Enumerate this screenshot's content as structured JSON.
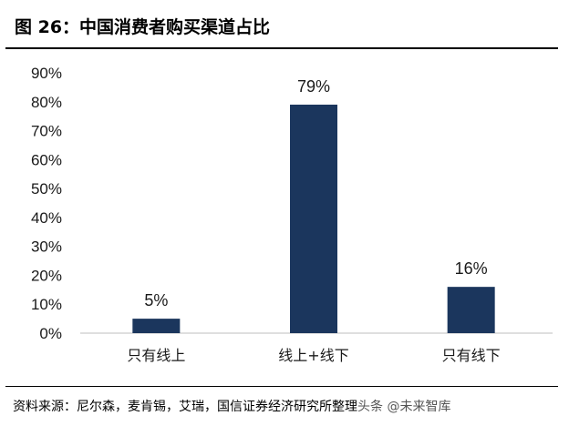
{
  "header": {
    "title": "图 26：中国消费者购买渠道占比"
  },
  "chart_data": {
    "type": "bar",
    "categories": [
      "只有线上",
      "线上+线下",
      "只有线下"
    ],
    "values": [
      5,
      79,
      16
    ],
    "value_labels": [
      "5%",
      "79%",
      "16%"
    ],
    "y_ticks": [
      "0%",
      "10%",
      "20%",
      "30%",
      "40%",
      "50%",
      "60%",
      "70%",
      "80%",
      "90%"
    ],
    "ylim": [
      0,
      90
    ],
    "grid": false,
    "bar_color": "#1B365D"
  },
  "footer": {
    "source": "资料来源：尼尔森，麦肯锡，艾瑞，国信证券经济研究所整理",
    "watermark": "头条 @未来智库"
  }
}
